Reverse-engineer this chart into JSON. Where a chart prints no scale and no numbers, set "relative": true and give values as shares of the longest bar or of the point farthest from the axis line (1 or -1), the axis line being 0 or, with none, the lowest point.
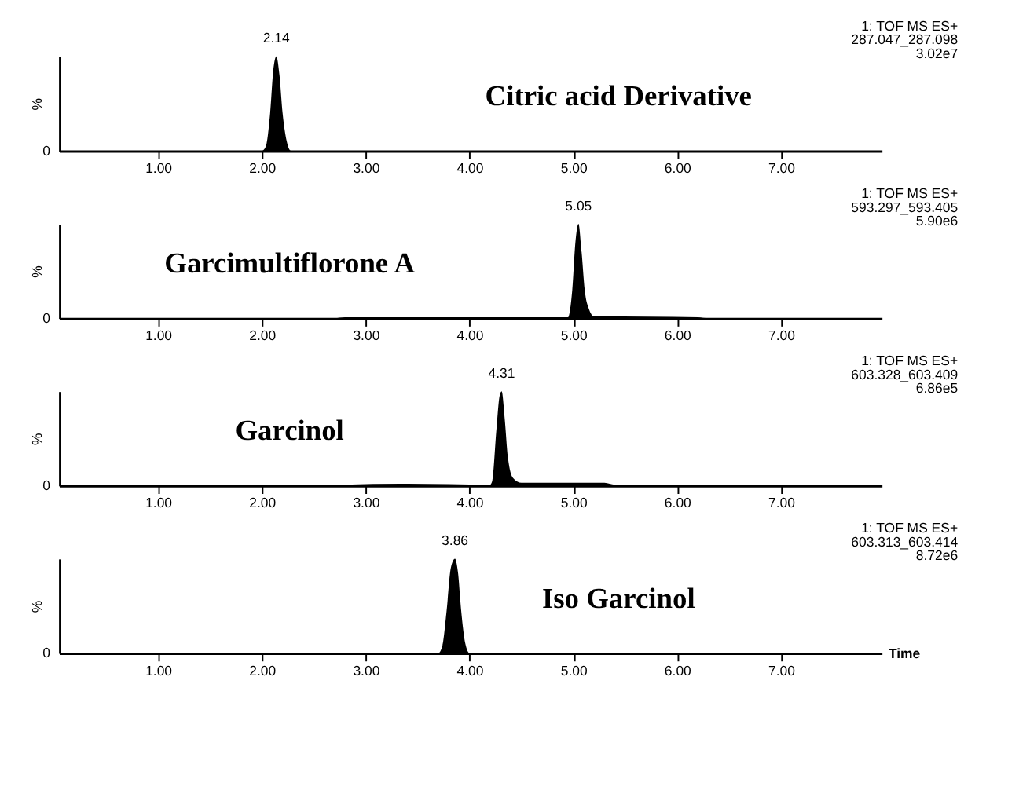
{
  "chart_data": [
    {
      "type": "area",
      "relative": true,
      "ylabel": "%",
      "xlim": [
        0.05,
        7.97
      ],
      "xticks": [
        {
          "value": 1,
          "label": "1.00"
        },
        {
          "value": 2,
          "label": "2.00"
        },
        {
          "value": 3,
          "label": "3.00"
        },
        {
          "value": 4,
          "label": "4.00"
        },
        {
          "value": 5,
          "label": "5.00"
        },
        {
          "value": 6,
          "label": "6.00"
        },
        {
          "value": 7,
          "label": "7.00"
        }
      ],
      "grid": false,
      "series": [
        {
          "color": "#000000",
          "x": [
            0.05,
            2.0,
            2.04,
            2.08,
            2.11,
            2.14,
            2.17,
            2.2,
            2.24,
            2.28,
            7.97
          ],
          "values": [
            0,
            0,
            0.05,
            0.4,
            0.85,
            1,
            0.8,
            0.4,
            0.1,
            0,
            0
          ]
        }
      ],
      "annotations": [
        {
          "text": "2.14",
          "x": 2.14,
          "y": 1
        },
        "Citric acid Derivative",
        "1: TOF MS ES+",
        "287.047_287.098",
        "3.02e7",
        "0"
      ]
    },
    {
      "type": "area",
      "relative": true,
      "ylabel": "%",
      "xlim": [
        0.05,
        7.97
      ],
      "xticks": [
        {
          "value": 1,
          "label": "1.00"
        },
        {
          "value": 2,
          "label": "2.00"
        },
        {
          "value": 3,
          "label": "3.00"
        },
        {
          "value": 4,
          "label": "4.00"
        },
        {
          "value": 5,
          "label": "5.00"
        },
        {
          "value": 6,
          "label": "6.00"
        },
        {
          "value": 7,
          "label": "7.00"
        }
      ],
      "grid": false,
      "series": [
        {
          "color": "#000000",
          "x": [
            0.05,
            2.7,
            2.8,
            3.4,
            4.2,
            4.95,
            4.99,
            5.02,
            5.05,
            5.08,
            5.11,
            5.15,
            5.2,
            6.2,
            6.3,
            7.97
          ],
          "values": [
            0,
            0,
            0.01,
            0.01,
            0.01,
            0.01,
            0.3,
            0.8,
            1,
            0.7,
            0.3,
            0.1,
            0.02,
            0.01,
            0,
            0
          ]
        }
      ],
      "annotations": [
        {
          "text": "5.05",
          "x": 5.05,
          "y": 1
        },
        "Garcimultiflorone A",
        "1: TOF MS ES+",
        "593.297_593.405",
        "5.90e6",
        "0"
      ]
    },
    {
      "type": "area",
      "relative": true,
      "ylabel": "%",
      "xlim": [
        0.05,
        7.97
      ],
      "xticks": [
        {
          "value": 1,
          "label": "1.00"
        },
        {
          "value": 2,
          "label": "2.00"
        },
        {
          "value": 3,
          "label": "3.00"
        },
        {
          "value": 4,
          "label": "4.00"
        },
        {
          "value": 5,
          "label": "5.00"
        },
        {
          "value": 6,
          "label": "6.00"
        },
        {
          "value": 7,
          "label": "7.00"
        }
      ],
      "grid": false,
      "series": [
        {
          "color": "#000000",
          "x": [
            0.05,
            2.7,
            2.8,
            3.4,
            4.2,
            4.22,
            4.26,
            4.29,
            4.31,
            4.34,
            4.37,
            4.42,
            4.5,
            5.3,
            5.4,
            6.4,
            6.5,
            7.97
          ],
          "values": [
            0,
            0,
            0.01,
            0.02,
            0.01,
            0.05,
            0.6,
            0.95,
            1,
            0.7,
            0.3,
            0.08,
            0.03,
            0.03,
            0.01,
            0.01,
            0,
            0
          ]
        }
      ],
      "annotations": [
        {
          "text": "4.31",
          "x": 4.31,
          "y": 1
        },
        "Garcinol",
        "1: TOF MS ES+",
        "603.328_603.409",
        "6.86e5",
        "0"
      ]
    },
    {
      "type": "area",
      "relative": true,
      "ylabel": "%",
      "xlabel": "Time",
      "xlim": [
        0.05,
        7.97
      ],
      "xticks": [
        {
          "value": 1,
          "label": "1.00"
        },
        {
          "value": 2,
          "label": "2.00"
        },
        {
          "value": 3,
          "label": "3.00"
        },
        {
          "value": 4,
          "label": "4.00"
        },
        {
          "value": 5,
          "label": "5.00"
        },
        {
          "value": 6,
          "label": "6.00"
        },
        {
          "value": 7,
          "label": "7.00"
        }
      ],
      "grid": false,
      "series": [
        {
          "color": "#000000",
          "x": [
            0.05,
            3.7,
            3.74,
            3.78,
            3.82,
            3.86,
            3.89,
            3.92,
            3.96,
            4.0,
            7.97
          ],
          "values": [
            0,
            0,
            0.08,
            0.45,
            0.9,
            1,
            0.85,
            0.45,
            0.1,
            0,
            0
          ]
        }
      ],
      "annotations": [
        {
          "text": "3.86",
          "x": 3.86,
          "y": 1
        },
        "Iso Garcinol",
        "1: TOF MS ES+",
        "603.313_603.414",
        "8.72e6",
        "0"
      ]
    }
  ]
}
